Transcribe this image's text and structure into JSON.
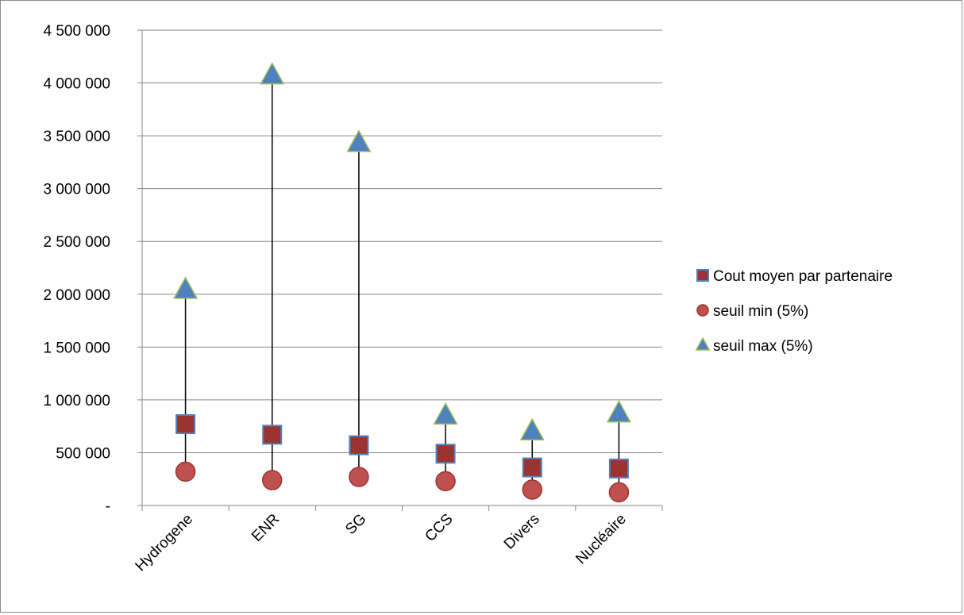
{
  "chart_data": {
    "type": "scatter",
    "title": "",
    "xlabel": "",
    "ylabel": "",
    "categories": [
      "Hydrogene",
      "ENR",
      "SG",
      "CCS",
      "Divers",
      "Nucléaire"
    ],
    "ylim": [
      0,
      4500000
    ],
    "yticks": [
      0,
      500000,
      1000000,
      1500000,
      2000000,
      2500000,
      3000000,
      3500000,
      4000000,
      4500000
    ],
    "ytick_labels": [
      "-",
      "500 000",
      "1 000 000",
      "1 500 000",
      "2 000 000",
      "2 500 000",
      "3 000 000",
      "3 500 000",
      "4 000 000",
      "4 500 000"
    ],
    "grid": true,
    "legend_position": "right",
    "series": [
      {
        "name": "Cout moyen par partenaire",
        "marker": "square",
        "fill": "#9b3431",
        "stroke": "#4f81bd",
        "values": [
          770000,
          670000,
          570000,
          490000,
          360000,
          350000
        ]
      },
      {
        "name": "seuil min (5%)",
        "marker": "circle",
        "fill": "#c0504d",
        "stroke": "#9b3431",
        "values": [
          320000,
          240000,
          270000,
          230000,
          150000,
          125000
        ]
      },
      {
        "name": "seuil max (5%)",
        "marker": "triangle",
        "fill": "#4f81bd",
        "stroke": "#9bbb59",
        "values": [
          2040000,
          4070000,
          3430000,
          850000,
          700000,
          870000
        ]
      }
    ],
    "range_lines": true
  }
}
